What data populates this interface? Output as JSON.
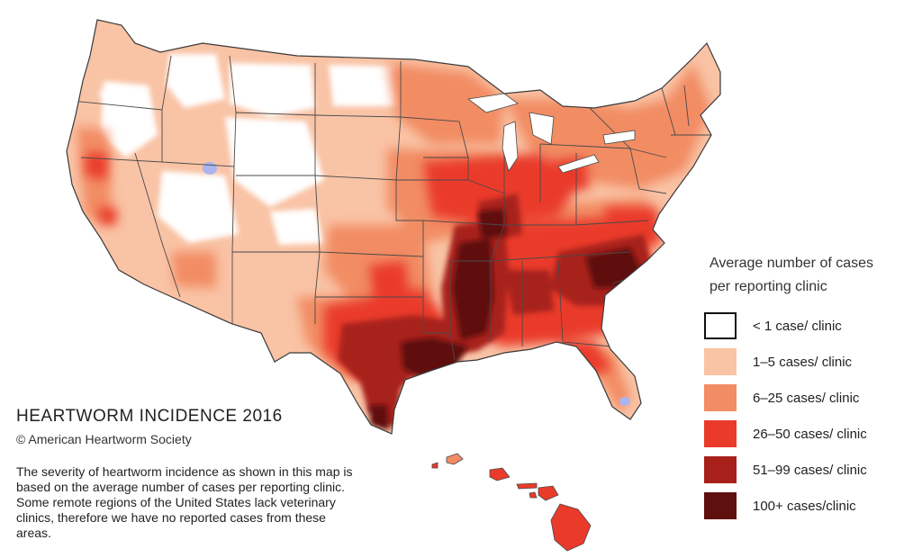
{
  "map": {
    "title": "HEARTWORM INCIDENCE 2016",
    "copyright": "© American Heartworm Society",
    "description": "The severity of heartworm incidence as shown in this map is based on the average number of cases per reporting clinic.  Some remote regions of the United States lack veterinary clinics, therefore we have no reported cases from these areas."
  },
  "legend": {
    "title": "Average number of cases\nper reporting clinic",
    "items": [
      {
        "label": "< 1 case/ clinic",
        "color": "#ffffff",
        "border": "#111111"
      },
      {
        "label": "1–5 cases/ clinic",
        "color": "#f9c3a5",
        "border": "none"
      },
      {
        "label": "6–25  cases/ clinic",
        "color": "#f28c64",
        "border": "none"
      },
      {
        "label": "26–50  cases/ clinic",
        "color": "#ea3a2a",
        "border": "none"
      },
      {
        "label": "51–99 cases/ clinic",
        "color": "#a8201a",
        "border": "none"
      },
      {
        "label": "100+ cases/clinic",
        "color": "#5e100e",
        "border": "none"
      }
    ]
  },
  "colors": {
    "state_border": "#4a4a4a",
    "no_data": "#aab4ee"
  }
}
